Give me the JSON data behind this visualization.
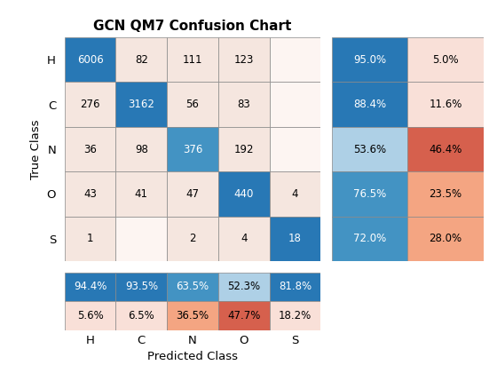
{
  "title": "GCN QM7 Confusion Chart",
  "classes": [
    "H",
    "C",
    "N",
    "O",
    "S"
  ],
  "confusion_matrix": [
    [
      6006,
      82,
      111,
      123,
      0
    ],
    [
      276,
      3162,
      56,
      83,
      0
    ],
    [
      36,
      98,
      376,
      192,
      0
    ],
    [
      43,
      41,
      47,
      440,
      4
    ],
    [
      1,
      0,
      2,
      4,
      18
    ]
  ],
  "row_true_pct": [
    95.0,
    88.4,
    53.6,
    76.5,
    72.0
  ],
  "row_false_pct": [
    5.0,
    11.6,
    46.4,
    23.5,
    28.0
  ],
  "col_true_pct": [
    94.4,
    93.5,
    63.5,
    52.3,
    81.8
  ],
  "col_false_pct": [
    5.6,
    6.5,
    36.5,
    47.7,
    18.2
  ],
  "xlabel": "Predicted Class",
  "ylabel": "True Class",
  "blue_dark": "#2878b5",
  "blue_mid": "#4393c3",
  "blue_light": "#aed0e6",
  "orange_dark": "#d6604d",
  "orange_light": "#f4a582",
  "pink_light": "#f9e0d8",
  "pink_lighter": "#fceee9",
  "cell_off_diag": "#f5e6df",
  "cell_zero": "#fdf5f2"
}
